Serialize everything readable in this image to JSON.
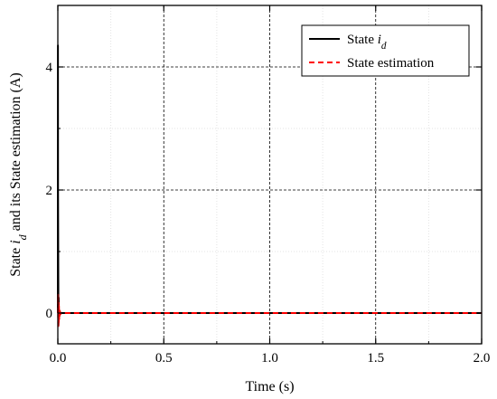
{
  "chart_data": {
    "type": "line",
    "xlabel": "Time (s)",
    "ylabel": {
      "parts": [
        {
          "text": "State "
        },
        {
          "text": "i",
          "italic": true
        },
        {
          "text": "d",
          "sub": true,
          "italic": true
        },
        {
          "text": " and its State estimation (A)"
        }
      ]
    },
    "xlim": [
      0,
      2.0
    ],
    "ylim": [
      -0.5,
      5.0
    ],
    "x_ticks": [
      0.0,
      0.5,
      1.0,
      1.5,
      2.0
    ],
    "x_tick_labels": [
      "0.0",
      "0.5",
      "1.0",
      "1.5",
      "2.0"
    ],
    "y_ticks": [
      0,
      2,
      4
    ],
    "y_tick_labels": [
      "0",
      "2",
      "4"
    ],
    "grid": "major dashed, minor dotted",
    "legend_position": "top-right",
    "series": [
      {
        "name": {
          "parts": [
            {
              "text": "State "
            },
            {
              "text": "i",
              "italic": true
            },
            {
              "text": "d",
              "sub": true,
              "italic": true
            }
          ]
        },
        "color": "#000000",
        "style": "solid",
        "x": [
          0,
          0.0005,
          0.001,
          0.002,
          0.003,
          0.004,
          0.005,
          0.006,
          0.008,
          0.01,
          0.015,
          0.02,
          0.5,
          1.0,
          1.5,
          2.0
        ],
        "y": [
          0,
          4.35,
          2.0,
          0.8,
          -0.2,
          0.25,
          -0.1,
          0.05,
          -0.03,
          0.01,
          0.0,
          0.0,
          0.0,
          0.0,
          0.0,
          0.0
        ]
      },
      {
        "name": "State estimation",
        "color": "#ff0000",
        "style": "dashed",
        "x": [
          0,
          0.001,
          0.002,
          0.003,
          0.004,
          0.005,
          0.006,
          0.007,
          0.008,
          0.01,
          0.012,
          0.015,
          0.02,
          0.5,
          1.0,
          1.5,
          2.0
        ],
        "y": [
          0,
          0.3,
          -0.25,
          0.2,
          -0.15,
          0.12,
          -0.1,
          0.07,
          -0.05,
          0.03,
          -0.02,
          0.0,
          0.0,
          0.0,
          0.0,
          0.0,
          0.0
        ]
      }
    ]
  }
}
